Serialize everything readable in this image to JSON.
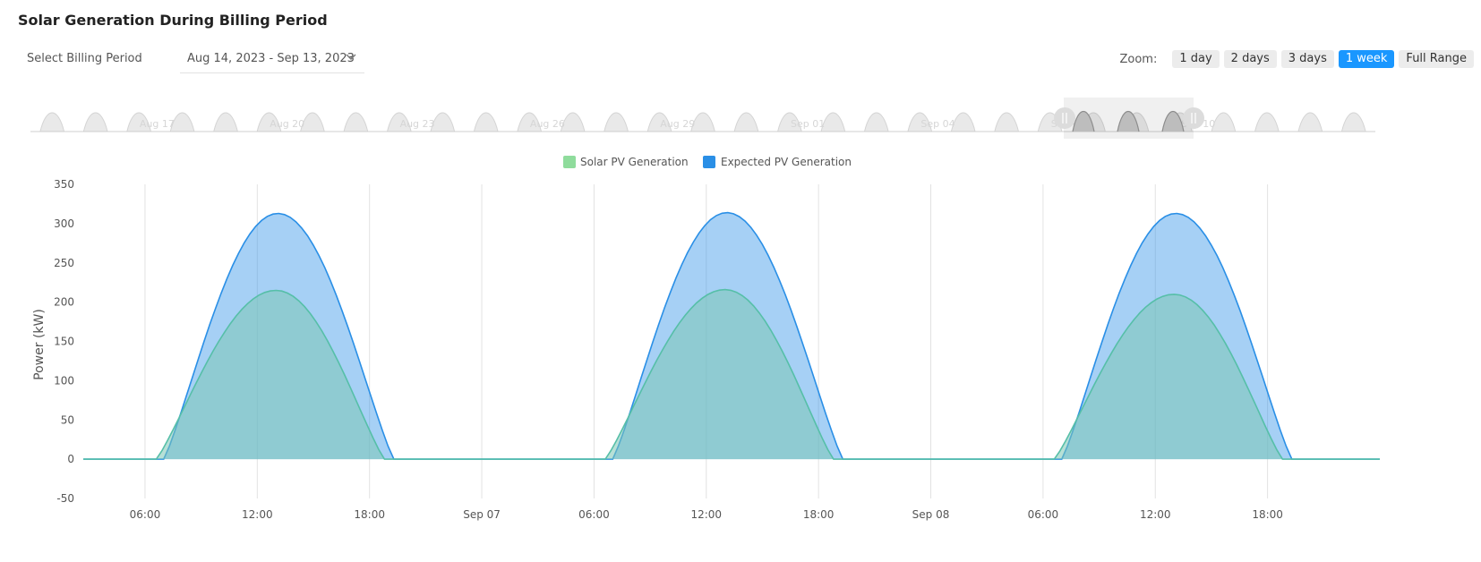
{
  "header": {
    "title": "Solar Generation During Billing Period"
  },
  "billing": {
    "label": "Select Billing Period",
    "selected": "Aug 14, 2023 - Sep 13, 2023"
  },
  "zoom": {
    "label": "Zoom:",
    "options": [
      {
        "label": "1 day",
        "active": false
      },
      {
        "label": "2 days",
        "active": false
      },
      {
        "label": "3 days",
        "active": false
      },
      {
        "label": "1 week",
        "active": true
      },
      {
        "label": "Full Range",
        "active": false
      }
    ]
  },
  "navigator": {
    "labels": [
      "Aug 17",
      "Aug 20",
      "Aug 23",
      "Aug 26",
      "Aug 29",
      "Sep 01",
      "Sep 04",
      "Sep 07",
      "Sep 10"
    ],
    "range": [
      "Sep 06",
      "Sep 08 24:00"
    ]
  },
  "chart_data": {
    "type": "area",
    "x_unit": "hours from Sep 06 00:00",
    "x_range": [
      2.7,
      72
    ],
    "ylabel": "Power (kW)",
    "ylim": [
      -50,
      350
    ],
    "yticks": [
      -50,
      0,
      50,
      100,
      150,
      200,
      250,
      300,
      350
    ],
    "xticks": [
      {
        "label": "06:00"
      },
      {
        "label": "12:00"
      },
      {
        "label": "18:00"
      },
      {
        "label": "Sep 07"
      },
      {
        "label": "06:00"
      },
      {
        "label": "12:00"
      },
      {
        "label": "18:00"
      },
      {
        "label": "Sep 08"
      },
      {
        "label": "06:00"
      },
      {
        "label": "12:00"
      },
      {
        "label": "18:00"
      }
    ],
    "legend_position": "top-center",
    "series": [
      {
        "name": "Solar PV Generation",
        "color": "#8fdc9c",
        "days": [
          {
            "peak": 215,
            "peak_hour": 13.0,
            "start": 6.6,
            "end": 18.8
          },
          {
            "peak": 216,
            "peak_hour": 13.0,
            "start": 6.6,
            "end": 18.8
          },
          {
            "peak": 210,
            "peak_hour": 13.0,
            "start": 6.6,
            "end": 18.8
          }
        ]
      },
      {
        "name": "Expected PV Generation",
        "color": "#2a8fe6",
        "days": [
          {
            "peak": 313,
            "peak_hour": 13.1,
            "start": 7.0,
            "end": 19.3
          },
          {
            "peak": 314,
            "peak_hour": 13.1,
            "start": 7.0,
            "end": 19.3
          },
          {
            "peak": 313,
            "peak_hour": 13.1,
            "start": 7.0,
            "end": 19.3
          }
        ]
      }
    ]
  }
}
